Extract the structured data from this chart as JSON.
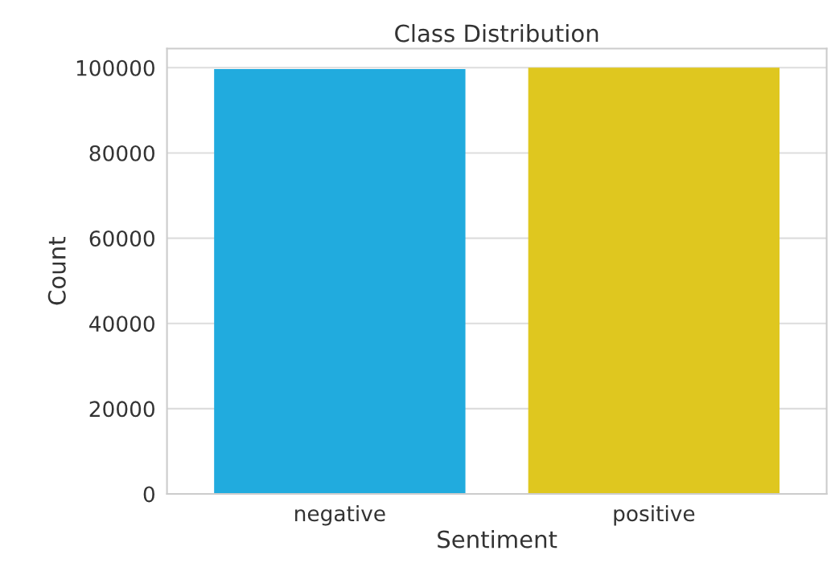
{
  "chart_data": {
    "type": "bar",
    "title": "Class Distribution",
    "xlabel": "Sentiment",
    "ylabel": "Count",
    "categories": [
      "negative",
      "positive"
    ],
    "values": [
      99700,
      100000
    ],
    "colors": [
      "#21abde",
      "#dfc71f"
    ],
    "ylim": [
      0,
      104500
    ],
    "yticks": [
      0,
      20000,
      40000,
      60000,
      80000,
      100000
    ],
    "grid": "y"
  }
}
